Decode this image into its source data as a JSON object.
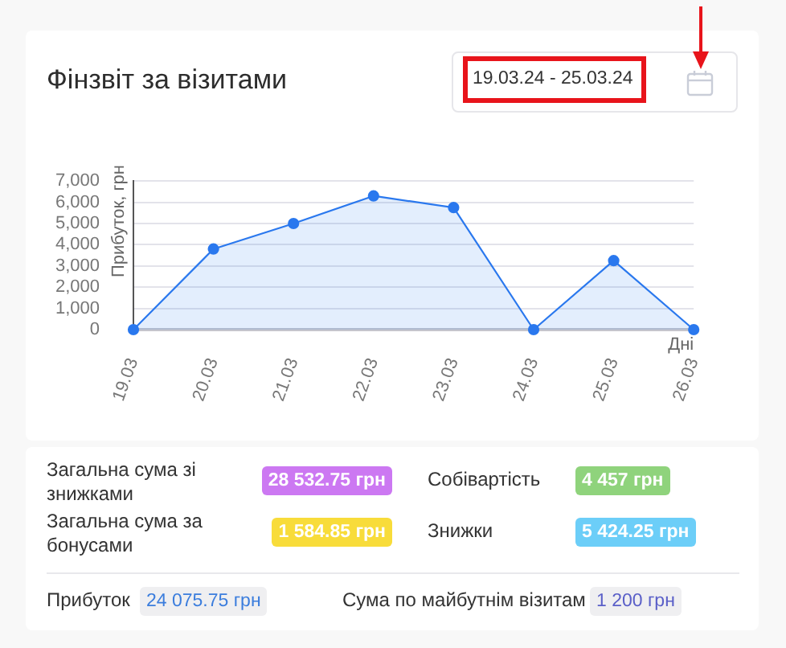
{
  "chart_data": [
    {
      "type": "area",
      "title": "Фінзвіт за візитами",
      "annotations": [
        "19.03.24 - 25.03.24"
      ],
      "xlabel": "Дні",
      "ylabel": "Прибуток, грн",
      "categories": [
        "19.03",
        "20.03",
        "21.03",
        "22.03",
        "23.03",
        "24.03",
        "25.03",
        "26.03"
      ],
      "series": [
        {
          "color": "#2a78ee",
          "values": [
            0,
            3800,
            5000,
            6300,
            5750,
            0,
            3250,
            0
          ]
        }
      ],
      "ylim": [
        0,
        7000
      ],
      "yticks": [
        0,
        {
          "value": 1000,
          "label": "1,000"
        },
        {
          "value": 2000,
          "label": "2,000"
        },
        {
          "value": 3000,
          "label": "3,000"
        },
        {
          "value": 4000,
          "label": "4,000"
        },
        {
          "value": 5000,
          "label": "5,000"
        },
        {
          "value": 6000,
          "label": "6,000"
        },
        {
          "value": 7000,
          "label": "7,000"
        }
      ],
      "grid": "y",
      "marker": "circle"
    },
    {
      "type": "other",
      "annotations": [
        "Загальна сума зі знижками",
        "28 532.75 грн",
        "Собівартість",
        "4 457 грн",
        "Загальна сума за бонусами",
        "1 584.85 грн",
        "Знижки",
        "5 424.25 грн",
        "Прибуток",
        "24 075.75 грн",
        "Сума по майбутнім візитам",
        "1 200 грн"
      ]
    }
  ]
}
